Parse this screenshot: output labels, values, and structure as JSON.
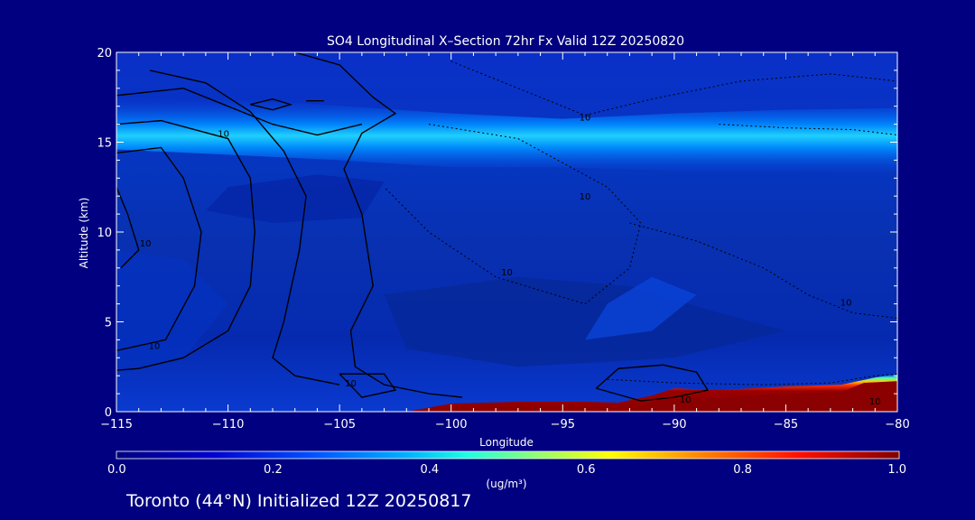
{
  "chart_data": {
    "type": "heatmap",
    "title": "SO4 Longitudinal X–Section 72hr  Fx Valid 12Z 20250820",
    "xlabel": "Longitude",
    "ylabel": "Altitude (km)",
    "xlim": [
      -115,
      -80
    ],
    "ylim": [
      0,
      20
    ],
    "x_ticks": [
      -115,
      -110,
      -105,
      -100,
      -95,
      -90,
      -85,
      -80
    ],
    "x_tick_labels": [
      "−115",
      "−110",
      "−105",
      "−100",
      "−95",
      "−90",
      "−85",
      "−80"
    ],
    "y_ticks": [
      0,
      5,
      10,
      15,
      20
    ],
    "y_tick_labels": [
      "0",
      "5",
      "10",
      "15",
      "20"
    ],
    "colorbar": {
      "min": 0.0,
      "max": 1.0,
      "ticks": [
        0.0,
        0.2,
        0.4,
        0.6,
        0.8,
        1.0
      ],
      "tick_labels": [
        "0.0",
        "0.2",
        "0.4",
        "0.6",
        "0.8",
        "1.0"
      ],
      "unit_label": "(ug/m³)"
    },
    "contour_labels": [
      {
        "text": "10",
        "lon": -110.2,
        "alt": 15.3
      },
      {
        "text": "10",
        "lon": -94.0,
        "alt": 16.2
      },
      {
        "text": "10",
        "lon": -94.0,
        "alt": 11.8
      },
      {
        "text": "10",
        "lon": -97.5,
        "alt": 7.6
      },
      {
        "text": "10",
        "lon": -113.7,
        "alt": 9.2
      },
      {
        "text": "10",
        "lon": -113.3,
        "alt": 3.5
      },
      {
        "text": "10",
        "lon": -104.5,
        "alt": 1.4
      },
      {
        "text": "10",
        "lon": -89.5,
        "alt": 0.5
      },
      {
        "text": "10",
        "lon": -82.3,
        "alt": 5.9
      },
      {
        "text": "10",
        "lon": -81.0,
        "alt": 0.4
      }
    ],
    "concentration_regions": [
      {
        "name": "upper-layer",
        "lon_range": [
          -115,
          -80
        ],
        "alt_range": [
          14,
          17
        ],
        "peak_value": 0.4
      },
      {
        "name": "surface-plume",
        "lon_range": [
          -92,
          -80
        ],
        "alt_range": [
          0,
          1.5
        ],
        "peak_value": 1.0
      }
    ]
  },
  "footer": {
    "caption": "Toronto (44°N) Initialized 12Z 20250817"
  },
  "colors": {
    "background": "#000080",
    "axes_text": "#ffffff",
    "field_low": "#0a2cc8",
    "field_high": "#8b0000"
  }
}
